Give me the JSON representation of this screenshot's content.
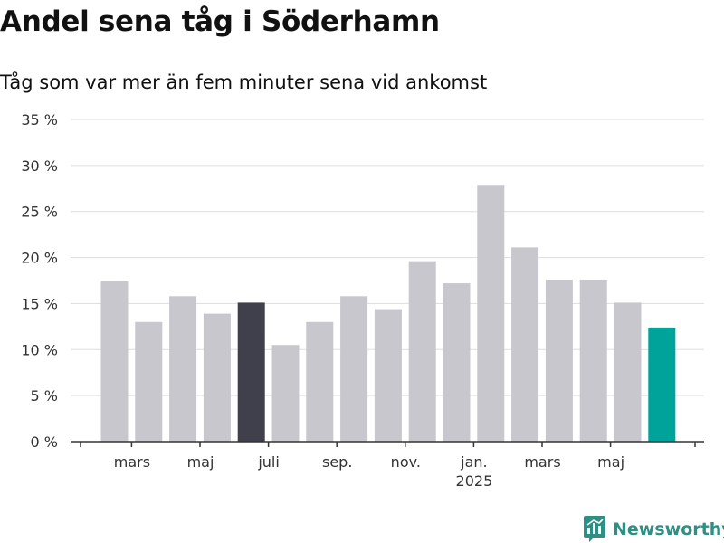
{
  "header": {
    "title": "Andel sena tåg i Söderhamn",
    "subtitle": "Tåg som var mer än fem minuter sena vid ankomst"
  },
  "logo": {
    "text": "Newsworthy",
    "icon": "newsworthy-chart-icon",
    "color": "#2e8f85"
  },
  "chart_data": {
    "type": "bar",
    "title": "Andel sena tåg i Söderhamn",
    "subtitle": "Tåg som var mer än fem minuter sena vid ankomst",
    "xlabel": "",
    "ylabel": "",
    "ylim": [
      0,
      35
    ],
    "yticks": [
      0,
      5,
      10,
      15,
      20,
      25,
      30,
      35
    ],
    "ytick_labels": [
      "0 %",
      "5 %",
      "10 %",
      "15 %",
      "20 %",
      "25 %",
      "30 %",
      "35 %"
    ],
    "grid": true,
    "x_labels": [
      {
        "bar": 1,
        "label": "mars"
      },
      {
        "bar": 3,
        "label": "maj"
      },
      {
        "bar": 5,
        "label": "juli"
      },
      {
        "bar": 7,
        "label": "sep."
      },
      {
        "bar": 9,
        "label": "nov."
      },
      {
        "bar": 11,
        "label": "jan.",
        "sublabel": "2025"
      },
      {
        "bar": 13,
        "label": "mars"
      },
      {
        "bar": 15,
        "label": "maj"
      }
    ],
    "values": [
      17.4,
      13.0,
      15.8,
      13.9,
      15.1,
      10.5,
      13.0,
      15.8,
      14.4,
      19.6,
      17.2,
      27.9,
      21.1,
      17.6,
      17.6,
      15.1,
      12.4
    ],
    "colors": {
      "default": "#c8c7ce",
      "highlight": "#403f4c",
      "latest": "#00a399",
      "grid": "#dddddd",
      "axis": "#333333"
    },
    "highlight_index": 4,
    "latest_index": 16
  }
}
